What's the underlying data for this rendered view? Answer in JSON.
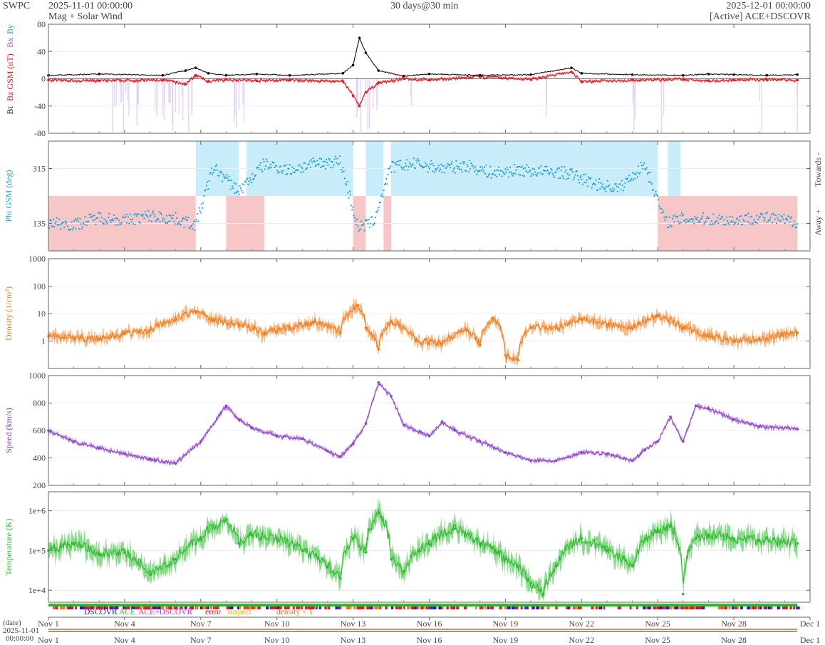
{
  "header": {
    "source": "SWPC",
    "start": "2025-11-01 00:00:00",
    "subtitle": "Mag + Solar Wind",
    "span": "30 days@30 min",
    "end": "2025-12-01 00:00:00",
    "status": "[Active] ACE+DSCOVR"
  },
  "colors": {
    "bt": "#111111",
    "bz": "#e31a1c",
    "bx": "#9b4fd6",
    "by": "#1fa3e0",
    "phi": "#1fa3e0",
    "phi_towards_fill": "#c8ecf9",
    "phi_away_fill": "#f7c6c6",
    "bx_fill": "#d9c8f2",
    "density": "#f07d1e",
    "speed": "#8a3fd1",
    "temperature": "#2dbb2d",
    "dscovr": "#1b1bd6",
    "ace": "#2dbb2d",
    "ace_dscovr": "#e12fcf",
    "error": "#e31a1c",
    "suspect": "#f0b800",
    "density_lt1": "#f07d1e"
  },
  "chart_data": [
    {
      "id": "mag",
      "type": "line",
      "ylabel_parts": [
        "Bt",
        "Bz GSM (nT)",
        "Bx",
        "By"
      ],
      "ylim": [
        -80,
        80
      ],
      "yticks": [
        "80",
        "40",
        "0",
        "-40",
        "-80"
      ],
      "ytick_values": [
        80,
        40,
        0,
        -40,
        -80
      ],
      "series": [
        {
          "name": "Bt",
          "x_days": [
            0,
            2,
            4.5,
            5.4,
            5.8,
            6.3,
            7,
            8.2,
            9.5,
            11.6,
            12.0,
            12.25,
            12.5,
            13,
            14,
            15,
            17,
            19,
            20.6,
            21,
            23,
            25,
            26,
            27,
            28.3,
            29.5
          ],
          "values": [
            5,
            7,
            5,
            12,
            16,
            8,
            5,
            7,
            5,
            8,
            20,
            60,
            38,
            12,
            4,
            7,
            5,
            6,
            16,
            8,
            6,
            5,
            7,
            6,
            5,
            6
          ]
        },
        {
          "name": "Bz",
          "x_days": [
            0,
            2,
            4.5,
            5.4,
            5.8,
            6.3,
            7,
            8.2,
            9.5,
            11.6,
            12.0,
            12.25,
            12.5,
            13,
            14,
            15,
            17,
            19,
            20.6,
            21,
            23,
            25,
            26,
            27,
            28.3,
            29.5
          ],
          "values": [
            -2,
            -3,
            -2,
            -8,
            5,
            -4,
            -1,
            -3,
            -2,
            -4,
            -25,
            -40,
            -20,
            -6,
            0,
            -2,
            3,
            -1,
            10,
            -4,
            -2,
            -1,
            -3,
            -2,
            -1,
            -2
          ]
        }
      ]
    },
    {
      "id": "phi",
      "type": "scatter",
      "ylabel": "Phi GSM (deg)",
      "right_labels": [
        "Towards -",
        "Away +"
      ],
      "ylim": [
        45,
        405
      ],
      "yticks": [
        "315",
        "135"
      ],
      "ytick_values": [
        315,
        135
      ],
      "towards_intervals": [
        [
          5.8,
          7.5
        ],
        [
          7.8,
          12.0
        ],
        [
          12.5,
          13.2
        ],
        [
          13.5,
          24.0
        ],
        [
          24.4,
          24.9
        ]
      ],
      "away_intervals": [
        [
          0,
          5.8
        ],
        [
          7.0,
          8.5
        ],
        [
          12.0,
          12.5
        ],
        [
          13.2,
          13.5
        ],
        [
          24.0,
          29.5
        ]
      ],
      "series": [
        {
          "name": "Phi",
          "x_days": [
            0,
            1,
            2,
            3,
            4,
            5,
            5.8,
            6.5,
            7.5,
            8.5,
            9.5,
            10.5,
            11.5,
            12.2,
            12.8,
            13.5,
            14.5,
            15.5,
            16.5,
            17.5,
            18.5,
            19.5,
            20.5,
            21.5,
            22.5,
            23.5,
            24.3,
            25,
            26,
            27,
            28,
            29.5
          ],
          "values": [
            140,
            130,
            155,
            145,
            160,
            150,
            130,
            320,
            240,
            330,
            310,
            330,
            340,
            120,
            140,
            320,
            330,
            315,
            325,
            300,
            310,
            305,
            300,
            265,
            250,
            330,
            140,
            150,
            150,
            145,
            155,
            140
          ]
        }
      ]
    },
    {
      "id": "density",
      "type": "line",
      "ylabel": "Density (1/cm³)",
      "scale": "log",
      "ylim": [
        0.1,
        1000
      ],
      "yticks": [
        "1000",
        "100",
        "10",
        "1"
      ],
      "ytick_values": [
        1000,
        100,
        10,
        1
      ],
      "series": [
        {
          "name": "Density",
          "x_days": [
            0,
            1,
            2,
            3,
            4,
            5,
            5.8,
            6.5,
            7.5,
            8.5,
            9.5,
            10.5,
            11.5,
            12.2,
            12.5,
            13,
            13.5,
            14.5,
            15.5,
            16.5,
            17,
            17.5,
            18,
            18.5,
            19,
            20,
            21,
            22,
            23,
            24,
            25,
            26,
            27,
            28,
            29.5
          ],
          "values": [
            1.5,
            1.3,
            1.2,
            1.8,
            2.5,
            6,
            12,
            6,
            4,
            2,
            3,
            5,
            2,
            20,
            3,
            0.5,
            5,
            1,
            0.8,
            2.5,
            0.7,
            7,
            0.3,
            0.2,
            3,
            3,
            6,
            4,
            3,
            8,
            3,
            1.5,
            1,
            1.2,
            2
          ]
        }
      ]
    },
    {
      "id": "speed",
      "type": "line",
      "ylabel": "Speed (km/s)",
      "ylim": [
        200,
        1000
      ],
      "yticks": [
        "1000",
        "800",
        "600",
        "400",
        "200"
      ],
      "ytick_values": [
        1000,
        800,
        600,
        400,
        200
      ],
      "series": [
        {
          "name": "Speed",
          "x_days": [
            0,
            1,
            2,
            3,
            4,
            5,
            6,
            7,
            7.5,
            8,
            9,
            10,
            11,
            11.5,
            12,
            12.5,
            13,
            13.5,
            14,
            15,
            15.5,
            16,
            17,
            18,
            19,
            20,
            21,
            22,
            23,
            23.5,
            24,
            24.5,
            25,
            25.5,
            26,
            27,
            28,
            29.5
          ],
          "values": [
            600,
            520,
            470,
            430,
            390,
            360,
            520,
            780,
            680,
            620,
            560,
            540,
            450,
            410,
            500,
            650,
            950,
            850,
            640,
            560,
            660,
            600,
            520,
            440,
            380,
            380,
            440,
            430,
            380,
            460,
            520,
            700,
            520,
            780,
            760,
            680,
            630,
            610
          ]
        }
      ]
    },
    {
      "id": "temperature",
      "type": "line",
      "ylabel": "Temperature (K)",
      "scale": "log",
      "ylim": [
        5000,
        3000000
      ],
      "yticks": [
        "1e+6",
        "1e+5",
        "1e+4"
      ],
      "ytick_values": [
        1000000,
        100000,
        10000
      ],
      "series": [
        {
          "name": "Temperature",
          "x_days": [
            0,
            1,
            2,
            3,
            4,
            5,
            6,
            7,
            7.5,
            8,
            9,
            10,
            11,
            11.5,
            12,
            12.5,
            13,
            13.5,
            14,
            15,
            16,
            17,
            18,
            19,
            19.5,
            20,
            21,
            22,
            23,
            24,
            24.5,
            25,
            25.5,
            26,
            27,
            28,
            29.5
          ],
          "values": [
            100000,
            150000,
            80000,
            90000,
            25000,
            60000,
            200000,
            600000,
            150000,
            250000,
            200000,
            100000,
            40000,
            20000,
            200000,
            90000,
            900000,
            60000,
            30000,
            150000,
            350000,
            150000,
            60000,
            15000,
            8000,
            40000,
            200000,
            100000,
            40000,
            300000,
            400000,
            8000,
            200000,
            250000,
            200000,
            180000,
            150000
          ]
        }
      ]
    }
  ],
  "source_legend": {
    "items": [
      "DSCOVR",
      "ACE",
      "ACE+DSCOVR",
      "error",
      "suspect",
      "density < 1"
    ]
  },
  "time_axis": {
    "tick_labels": [
      "Nov 1",
      "Nov 4",
      "Nov 7",
      "Nov 10",
      "Nov 13",
      "Nov 16",
      "Nov 19",
      "Nov 22",
      "Nov 25",
      "Nov 28",
      "Dec 1"
    ],
    "tick_days": [
      0,
      3,
      6,
      9,
      12,
      15,
      18,
      21,
      24,
      27,
      30
    ],
    "date_label": "(date)",
    "date_start_line1": "2025-11-01",
    "date_start_line2": "00:00:00"
  }
}
